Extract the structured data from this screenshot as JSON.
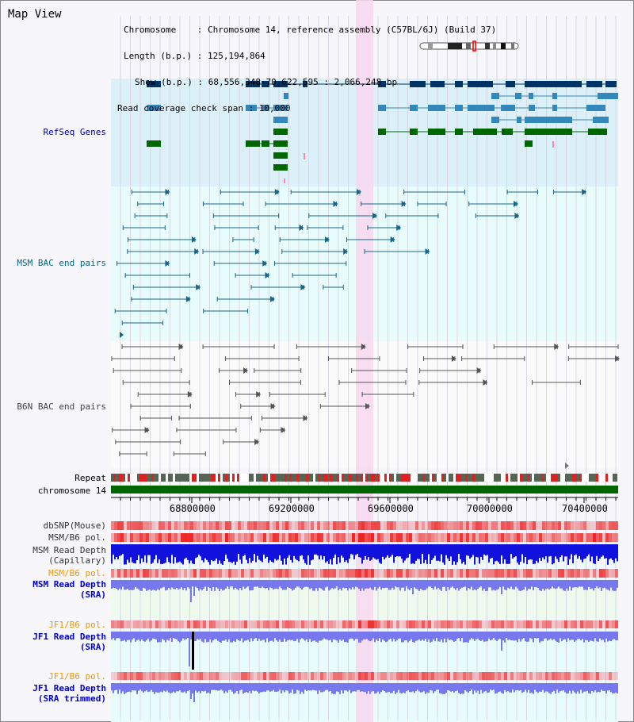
{
  "view": {
    "title": "Map View"
  },
  "header": {
    "line1": "Chromosome    : Chromosome 14, reference assembly (C57BL/6J) (Build 37)",
    "line2": "Length (b.p.) : 125,194,864",
    "line3": "Show (b.p.) : 68,556,348-70,622,595 : 2,066,248 bp",
    "line4": "Read coverage check span : 10,000"
  },
  "tracks": {
    "refseq": "RefSeq Genes",
    "msm_bac": "MSM BAC end pairs",
    "b6n_bac": "B6N BAC end pairs",
    "repeat": "Repeat",
    "chromosome": "chromosome 14",
    "dbsnp": "dbSNP(Mouse)",
    "msm_b6_pol_1": "MSM/B6 pol.",
    "msm_read_depth_cap_1": "MSM Read Depth",
    "msm_read_depth_cap_2": "(Capillary)",
    "msm_b6_pol_2": "MSM/B6 pol.",
    "msm_read_depth_sra_1": "MSM Read Depth",
    "msm_read_depth_sra_2": "(SRA)",
    "jf1_b6_pol_1": "JF1/B6 pol.",
    "jf1_read_depth_sra_1": "JF1 Read Depth",
    "jf1_read_depth_sra_2": "(SRA)",
    "jf1_b6_pol_2": "JF1/B6 pol.",
    "jf1_read_depth_trim_1": "JF1 Read Depth",
    "jf1_read_depth_trim_2": "(SRA trimmed)"
  },
  "axis": {
    "ticks": [
      "68800000",
      "69200000",
      "69600000",
      "70000000",
      "70400000"
    ]
  },
  "colors": {
    "refseq_bg": "#dcf0fa",
    "bac_bg": "#e8fcfc",
    "highlight": "#f8d8f0",
    "gene_dark": "#003366",
    "gene_mid": "#3388bb",
    "gene_green": "#006600",
    "msm_label": "#006688",
    "orange": "#ee9900",
    "blue": "#0000cc",
    "red": "#ee0000"
  }
}
